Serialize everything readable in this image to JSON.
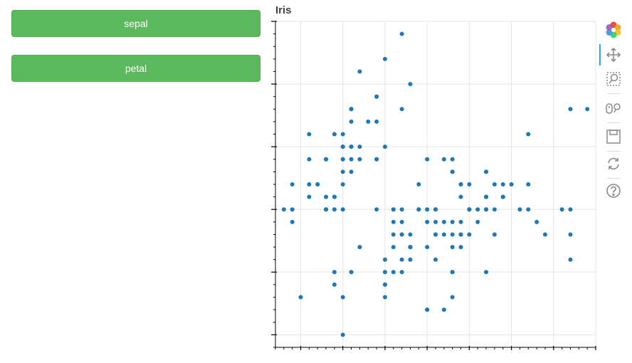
{
  "buttons": {
    "sepal_label": "sepal",
    "petal_label": "petal",
    "color": "#5cb85c"
  },
  "chart_data": {
    "type": "scatter",
    "title": "Iris",
    "xlabel": "",
    "ylabel": "",
    "xlim": [
      4.2,
      8.0
    ],
    "ylim": [
      1.9,
      4.5
    ],
    "grid": true,
    "point_color": "#1f77b4",
    "x": [
      5.1,
      4.9,
      4.7,
      4.6,
      5.0,
      5.4,
      4.6,
      5.0,
      4.4,
      4.9,
      5.4,
      4.8,
      4.8,
      4.3,
      5.8,
      5.7,
      5.4,
      5.1,
      5.7,
      5.1,
      5.4,
      5.1,
      4.6,
      5.1,
      4.8,
      5.0,
      5.0,
      5.2,
      5.2,
      4.7,
      4.8,
      5.4,
      5.2,
      5.5,
      4.9,
      5.0,
      5.5,
      4.9,
      4.4,
      5.1,
      5.0,
      4.5,
      4.4,
      5.0,
      5.1,
      4.8,
      5.1,
      4.6,
      5.3,
      5.0,
      7.0,
      6.4,
      6.9,
      5.5,
      6.5,
      5.7,
      6.3,
      4.9,
      6.6,
      5.2,
      5.0,
      5.9,
      6.0,
      6.1,
      5.6,
      6.7,
      5.6,
      5.8,
      6.2,
      5.6,
      5.9,
      6.1,
      6.3,
      6.1,
      6.4,
      6.6,
      6.8,
      6.7,
      6.0,
      5.7,
      5.5,
      5.5,
      5.8,
      6.0,
      5.4,
      6.0,
      6.7,
      6.3,
      5.6,
      5.5,
      5.5,
      6.1,
      5.8,
      5.0,
      5.6,
      5.7,
      5.7,
      6.2,
      5.1,
      5.7,
      6.3,
      5.8,
      7.1,
      6.3,
      6.5,
      7.6,
      4.9,
      7.3,
      6.7,
      7.2,
      6.5,
      6.4,
      6.8,
      5.7,
      5.8,
      6.4,
      6.5,
      7.7,
      7.7,
      6.0,
      6.9,
      5.6,
      7.7,
      6.3,
      6.7,
      7.2,
      6.2,
      6.1,
      6.4,
      7.2,
      7.4,
      7.9,
      6.4,
      6.3,
      6.1,
      7.7,
      6.3,
      6.4,
      6.0,
      6.9,
      6.7,
      6.9,
      5.8,
      6.8,
      6.7,
      6.7,
      6.3,
      6.5,
      6.2,
      5.9
    ],
    "y": [
      3.5,
      3.0,
      3.2,
      3.1,
      3.6,
      3.9,
      3.4,
      3.4,
      2.9,
      3.1,
      3.7,
      3.4,
      3.0,
      3.0,
      4.0,
      4.4,
      3.9,
      3.5,
      3.8,
      3.8,
      3.4,
      3.7,
      3.6,
      3.3,
      3.4,
      3.0,
      3.4,
      3.5,
      3.4,
      3.2,
      3.1,
      3.4,
      4.1,
      4.2,
      3.1,
      3.2,
      3.5,
      3.6,
      3.0,
      3.4,
      3.5,
      2.3,
      3.2,
      3.5,
      3.8,
      3.0,
      3.8,
      3.2,
      3.7,
      3.3,
      3.2,
      3.2,
      3.1,
      2.3,
      2.8,
      2.8,
      3.3,
      2.4,
      2.9,
      2.7,
      2.0,
      3.0,
      2.2,
      2.9,
      2.9,
      3.1,
      3.0,
      2.7,
      2.2,
      2.5,
      3.2,
      2.8,
      2.5,
      2.8,
      2.9,
      3.0,
      2.8,
      3.0,
      2.9,
      2.6,
      2.4,
      2.4,
      2.7,
      2.7,
      3.0,
      3.4,
      3.1,
      2.3,
      3.0,
      2.5,
      2.6,
      3.0,
      2.6,
      2.3,
      2.7,
      3.0,
      2.9,
      2.9,
      2.5,
      2.8,
      3.3,
      2.7,
      3.0,
      2.9,
      3.0,
      3.0,
      2.5,
      2.9,
      2.5,
      3.6,
      3.2,
      2.7,
      3.0,
      2.5,
      2.8,
      3.2,
      3.0,
      3.8,
      2.6,
      2.2,
      3.2,
      2.8,
      2.8,
      2.7,
      3.3,
      3.2,
      2.8,
      3.0,
      2.8,
      3.0,
      2.8,
      3.8,
      2.8,
      2.8,
      2.6,
      3.0,
      3.4,
      3.1,
      3.0,
      3.1,
      3.1,
      3.1,
      2.7,
      3.2,
      3.3,
      3.0,
      2.5,
      3.0,
      3.4,
      3.0
    ]
  },
  "toolbar": {
    "tools": [
      {
        "name": "bokeh-logo-icon"
      },
      {
        "name": "pan-icon",
        "active": true
      },
      {
        "name": "box-zoom-icon"
      },
      {
        "name": "wheel-zoom-icon"
      },
      {
        "name": "save-icon"
      },
      {
        "name": "reset-icon"
      },
      {
        "name": "help-icon"
      }
    ]
  }
}
